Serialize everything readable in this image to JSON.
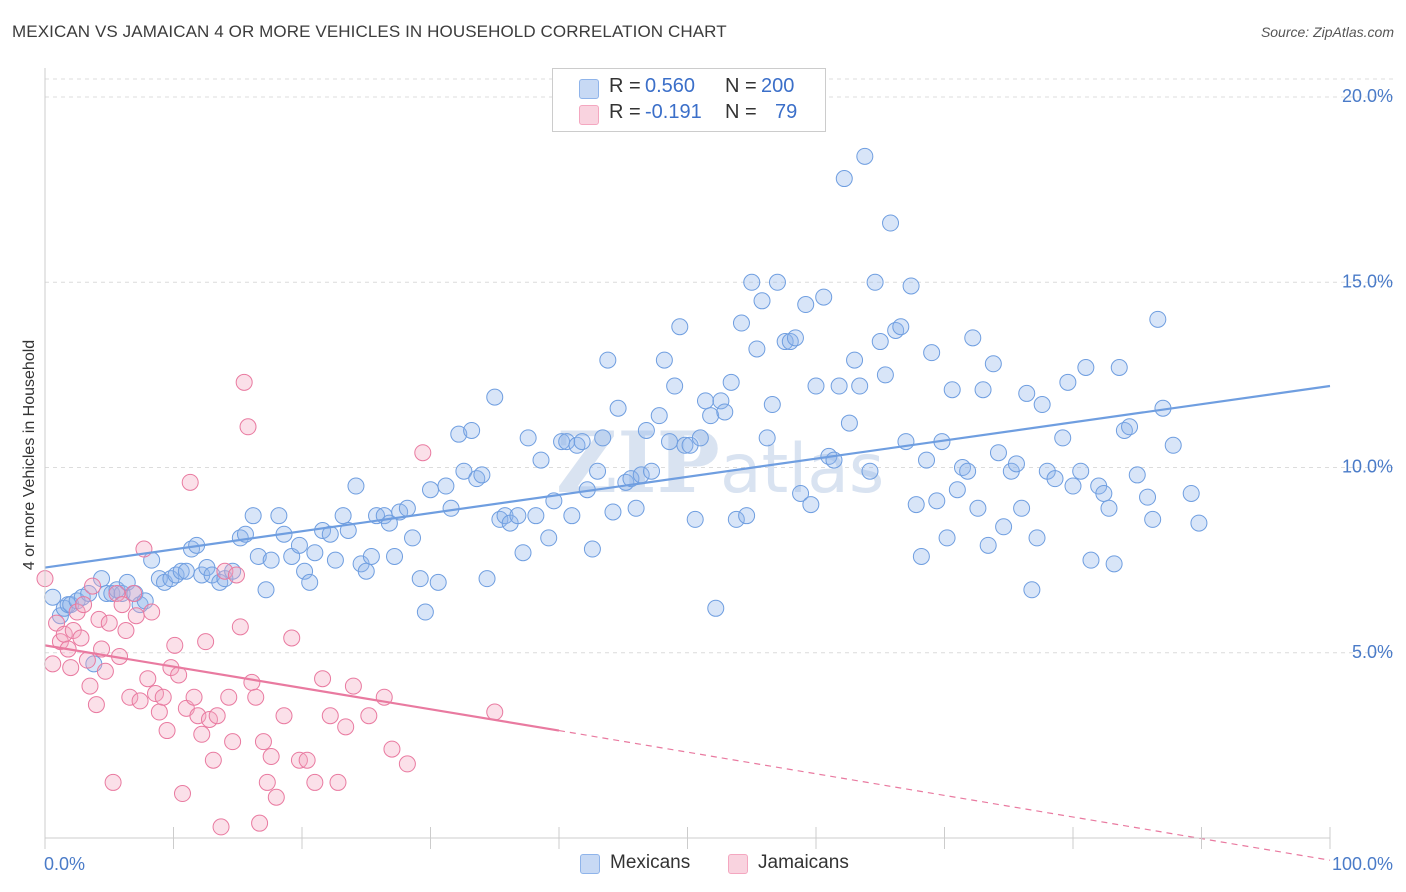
{
  "title": "MEXICAN VS JAMAICAN 4 OR MORE VEHICLES IN HOUSEHOLD CORRELATION CHART",
  "source": "Source: ZipAtlas.com",
  "watermark": "ZIPatlas",
  "legend_top": {
    "rows": [
      {
        "r_label": "R =",
        "r_value": "0.560",
        "n_label": "N =",
        "n_value": "200",
        "color": "#8fb4ea"
      },
      {
        "r_label": "R =",
        "r_value": "-0.191",
        "n_label": "N =",
        "n_value": "79",
        "color": "#f4a7c0"
      }
    ]
  },
  "legend_bottom": [
    {
      "label": "Mexicans",
      "color": "#8fb4ea"
    },
    {
      "label": "Jamaicans",
      "color": "#f4a7c0"
    }
  ],
  "chart_data": {
    "type": "scatter",
    "title": "MEXICAN VS JAMAICAN 4 OR MORE VEHICLES IN HOUSEHOLD CORRELATION CHART",
    "xlabel": "",
    "ylabel": "4 or more Vehicles in Household",
    "xlim": [
      0,
      100
    ],
    "ylim": [
      0,
      21
    ],
    "x_tick_labels": [
      "0.0%",
      "100.0%"
    ],
    "y_ticks": [
      5,
      10,
      15,
      20
    ],
    "y_tick_labels": [
      "5.0%",
      "10.0%",
      "15.0%",
      "20.0%"
    ],
    "grid": true,
    "legend_position": "top-center",
    "series": [
      {
        "name": "Mexicans",
        "color": "#6f9ee0",
        "fill": "rgba(143,180,234,0.35)",
        "trend": {
          "x": [
            0,
            100
          ],
          "y": [
            7.3,
            12.2
          ]
        },
        "points": [
          [
            0.6,
            6.5
          ],
          [
            1.2,
            6.0
          ],
          [
            1.5,
            6.2
          ],
          [
            1.8,
            6.3
          ],
          [
            2.0,
            6.3
          ],
          [
            2.5,
            6.4
          ],
          [
            2.9,
            6.5
          ],
          [
            3.4,
            6.6
          ],
          [
            3.8,
            4.7
          ],
          [
            4.4,
            7.0
          ],
          [
            4.8,
            6.6
          ],
          [
            5.2,
            6.6
          ],
          [
            5.6,
            6.7
          ],
          [
            6.0,
            6.6
          ],
          [
            6.4,
            6.9
          ],
          [
            7.0,
            6.6
          ],
          [
            7.4,
            6.3
          ],
          [
            7.8,
            6.4
          ],
          [
            8.3,
            7.5
          ],
          [
            8.9,
            7.0
          ],
          [
            9.3,
            6.9
          ],
          [
            9.8,
            7.0
          ],
          [
            10.2,
            7.1
          ],
          [
            10.6,
            7.2
          ],
          [
            11.0,
            7.2
          ],
          [
            11.4,
            7.8
          ],
          [
            11.8,
            7.9
          ],
          [
            12.2,
            7.1
          ],
          [
            12.6,
            7.3
          ],
          [
            13.0,
            7.1
          ],
          [
            13.6,
            6.9
          ],
          [
            14.0,
            7.0
          ],
          [
            14.6,
            7.2
          ],
          [
            15.2,
            8.1
          ],
          [
            15.6,
            8.2
          ],
          [
            16.2,
            8.7
          ],
          [
            16.6,
            7.6
          ],
          [
            17.2,
            6.7
          ],
          [
            17.6,
            7.5
          ],
          [
            18.2,
            8.7
          ],
          [
            18.6,
            8.2
          ],
          [
            19.2,
            7.6
          ],
          [
            19.8,
            7.9
          ],
          [
            20.2,
            7.2
          ],
          [
            20.6,
            6.9
          ],
          [
            21.0,
            7.7
          ],
          [
            21.6,
            8.3
          ],
          [
            22.2,
            8.2
          ],
          [
            22.6,
            7.5
          ],
          [
            23.2,
            8.7
          ],
          [
            23.6,
            8.3
          ],
          [
            24.2,
            9.5
          ],
          [
            24.6,
            7.4
          ],
          [
            25.0,
            7.2
          ],
          [
            25.4,
            7.6
          ],
          [
            25.8,
            8.7
          ],
          [
            26.4,
            8.7
          ],
          [
            26.8,
            8.5
          ],
          [
            27.2,
            7.6
          ],
          [
            27.6,
            8.8
          ],
          [
            28.2,
            8.9
          ],
          [
            28.6,
            8.1
          ],
          [
            29.2,
            7.0
          ],
          [
            29.6,
            6.1
          ],
          [
            30.0,
            9.4
          ],
          [
            30.6,
            6.9
          ],
          [
            31.2,
            9.5
          ],
          [
            31.6,
            8.9
          ],
          [
            32.2,
            10.9
          ],
          [
            32.6,
            9.9
          ],
          [
            33.2,
            11.0
          ],
          [
            33.6,
            9.7
          ],
          [
            34.0,
            9.8
          ],
          [
            34.4,
            7.0
          ],
          [
            35.0,
            11.9
          ],
          [
            35.4,
            8.6
          ],
          [
            35.8,
            8.7
          ],
          [
            36.2,
            8.5
          ],
          [
            36.8,
            8.7
          ],
          [
            37.2,
            7.7
          ],
          [
            37.6,
            10.8
          ],
          [
            38.2,
            8.7
          ],
          [
            38.6,
            10.2
          ],
          [
            39.2,
            8.1
          ],
          [
            39.6,
            9.1
          ],
          [
            40.2,
            10.7
          ],
          [
            40.6,
            10.7
          ],
          [
            41.0,
            8.7
          ],
          [
            41.4,
            10.6
          ],
          [
            41.8,
            10.7
          ],
          [
            42.2,
            9.4
          ],
          [
            42.6,
            7.8
          ],
          [
            43.0,
            9.9
          ],
          [
            43.4,
            10.8
          ],
          [
            43.8,
            12.9
          ],
          [
            44.2,
            8.8
          ],
          [
            44.6,
            11.6
          ],
          [
            45.2,
            9.6
          ],
          [
            45.6,
            9.7
          ],
          [
            46.0,
            8.9
          ],
          [
            46.4,
            9.8
          ],
          [
            46.8,
            11.0
          ],
          [
            47.2,
            9.9
          ],
          [
            47.8,
            11.4
          ],
          [
            48.2,
            12.9
          ],
          [
            48.6,
            10.7
          ],
          [
            49.0,
            12.2
          ],
          [
            49.4,
            13.8
          ],
          [
            49.8,
            10.6
          ],
          [
            50.2,
            10.6
          ],
          [
            50.6,
            8.6
          ],
          [
            51.0,
            10.8
          ],
          [
            51.4,
            11.8
          ],
          [
            51.8,
            11.4
          ],
          [
            52.2,
            6.2
          ],
          [
            52.6,
            11.8
          ],
          [
            52.9,
            11.5
          ],
          [
            53.4,
            12.3
          ],
          [
            53.8,
            8.6
          ],
          [
            54.2,
            13.9
          ],
          [
            54.6,
            8.7
          ],
          [
            55.0,
            15.0
          ],
          [
            55.4,
            13.2
          ],
          [
            55.8,
            14.5
          ],
          [
            56.2,
            10.8
          ],
          [
            56.6,
            11.7
          ],
          [
            57.0,
            15.0
          ],
          [
            57.6,
            13.4
          ],
          [
            58.0,
            13.4
          ],
          [
            58.4,
            13.5
          ],
          [
            58.8,
            9.3
          ],
          [
            59.2,
            14.4
          ],
          [
            59.6,
            9.0
          ],
          [
            60.0,
            12.2
          ],
          [
            60.6,
            14.6
          ],
          [
            61.0,
            10.3
          ],
          [
            61.4,
            10.2
          ],
          [
            61.8,
            12.2
          ],
          [
            62.2,
            17.8
          ],
          [
            62.6,
            11.2
          ],
          [
            63.0,
            12.9
          ],
          [
            63.4,
            12.2
          ],
          [
            63.8,
            18.4
          ],
          [
            64.2,
            9.9
          ],
          [
            64.6,
            15.0
          ],
          [
            65.0,
            13.4
          ],
          [
            65.4,
            12.5
          ],
          [
            65.8,
            16.6
          ],
          [
            66.2,
            13.7
          ],
          [
            66.6,
            13.8
          ],
          [
            67.0,
            10.7
          ],
          [
            67.4,
            14.9
          ],
          [
            67.8,
            9.0
          ],
          [
            68.2,
            7.6
          ],
          [
            68.6,
            10.2
          ],
          [
            69.0,
            13.1
          ],
          [
            69.4,
            9.1
          ],
          [
            69.8,
            10.7
          ],
          [
            70.2,
            8.1
          ],
          [
            70.6,
            12.1
          ],
          [
            71.0,
            9.4
          ],
          [
            71.4,
            10.0
          ],
          [
            71.8,
            9.9
          ],
          [
            72.2,
            13.5
          ],
          [
            72.6,
            8.9
          ],
          [
            73.0,
            12.1
          ],
          [
            73.4,
            7.9
          ],
          [
            73.8,
            12.8
          ],
          [
            74.2,
            10.4
          ],
          [
            74.6,
            8.4
          ],
          [
            75.2,
            9.9
          ],
          [
            75.6,
            10.1
          ],
          [
            76.0,
            8.9
          ],
          [
            76.4,
            12.0
          ],
          [
            76.8,
            6.7
          ],
          [
            77.2,
            8.1
          ],
          [
            77.6,
            11.7
          ],
          [
            78.0,
            9.9
          ],
          [
            78.6,
            9.7
          ],
          [
            79.2,
            10.8
          ],
          [
            79.6,
            12.3
          ],
          [
            80.0,
            9.5
          ],
          [
            80.6,
            9.9
          ],
          [
            81.0,
            12.7
          ],
          [
            81.4,
            7.5
          ],
          [
            82.0,
            9.5
          ],
          [
            82.4,
            9.3
          ],
          [
            82.8,
            8.9
          ],
          [
            83.2,
            7.4
          ],
          [
            83.6,
            12.7
          ],
          [
            84.0,
            11.0
          ],
          [
            84.4,
            11.1
          ],
          [
            85.0,
            9.8
          ],
          [
            85.8,
            9.2
          ],
          [
            86.2,
            8.6
          ],
          [
            86.6,
            14.0
          ],
          [
            87.0,
            11.6
          ],
          [
            87.8,
            10.6
          ],
          [
            89.2,
            9.3
          ],
          [
            89.8,
            8.5
          ]
        ]
      },
      {
        "name": "Jamaicans",
        "color": "#e97aa0",
        "fill": "rgba(244,167,192,0.35)",
        "trend": {
          "x": [
            0,
            40
          ],
          "y": [
            5.2,
            2.9
          ]
        },
        "trend_dashed": {
          "x": [
            40,
            100
          ],
          "y": [
            2.9,
            -0.6
          ]
        },
        "points": [
          [
            0.0,
            7.0
          ],
          [
            0.6,
            4.7
          ],
          [
            0.9,
            5.8
          ],
          [
            1.2,
            5.3
          ],
          [
            1.5,
            5.5
          ],
          [
            1.8,
            5.1
          ],
          [
            2.0,
            4.6
          ],
          [
            2.2,
            5.6
          ],
          [
            2.5,
            6.1
          ],
          [
            2.8,
            5.4
          ],
          [
            3.0,
            6.3
          ],
          [
            3.3,
            4.8
          ],
          [
            3.5,
            4.1
          ],
          [
            3.7,
            6.8
          ],
          [
            4.0,
            3.6
          ],
          [
            4.2,
            5.9
          ],
          [
            4.4,
            5.1
          ],
          [
            4.7,
            4.5
          ],
          [
            5.0,
            5.8
          ],
          [
            5.3,
            1.5
          ],
          [
            5.6,
            6.6
          ],
          [
            5.8,
            4.9
          ],
          [
            6.0,
            6.3
          ],
          [
            6.3,
            5.6
          ],
          [
            6.6,
            3.8
          ],
          [
            6.9,
            6.6
          ],
          [
            7.1,
            6.0
          ],
          [
            7.4,
            3.7
          ],
          [
            7.7,
            7.8
          ],
          [
            8.0,
            4.3
          ],
          [
            8.3,
            6.1
          ],
          [
            8.6,
            3.9
          ],
          [
            8.9,
            3.4
          ],
          [
            9.2,
            3.8
          ],
          [
            9.5,
            2.9
          ],
          [
            9.8,
            4.6
          ],
          [
            10.1,
            5.2
          ],
          [
            10.4,
            4.4
          ],
          [
            10.7,
            1.2
          ],
          [
            11.0,
            3.5
          ],
          [
            11.3,
            9.6
          ],
          [
            11.6,
            3.8
          ],
          [
            11.9,
            3.3
          ],
          [
            12.2,
            2.8
          ],
          [
            12.5,
            5.3
          ],
          [
            12.8,
            3.2
          ],
          [
            13.1,
            2.1
          ],
          [
            13.4,
            3.3
          ],
          [
            13.7,
            0.3
          ],
          [
            14.0,
            7.2
          ],
          [
            14.3,
            3.8
          ],
          [
            14.6,
            2.6
          ],
          [
            14.9,
            7.1
          ],
          [
            15.2,
            5.7
          ],
          [
            15.5,
            12.3
          ],
          [
            15.8,
            11.1
          ],
          [
            16.1,
            4.2
          ],
          [
            16.4,
            3.8
          ],
          [
            16.7,
            0.4
          ],
          [
            17.0,
            2.6
          ],
          [
            17.3,
            1.5
          ],
          [
            17.6,
            2.2
          ],
          [
            18.0,
            1.1
          ],
          [
            18.6,
            3.3
          ],
          [
            19.2,
            5.4
          ],
          [
            19.8,
            2.1
          ],
          [
            20.4,
            2.1
          ],
          [
            21.0,
            1.5
          ],
          [
            21.6,
            4.3
          ],
          [
            22.2,
            3.3
          ],
          [
            22.8,
            1.5
          ],
          [
            23.4,
            3.0
          ],
          [
            24.0,
            4.1
          ],
          [
            25.2,
            3.3
          ],
          [
            26.4,
            3.8
          ],
          [
            27.0,
            2.4
          ],
          [
            28.2,
            2.0
          ],
          [
            29.4,
            10.4
          ],
          [
            35.0,
            3.4
          ]
        ]
      }
    ]
  }
}
